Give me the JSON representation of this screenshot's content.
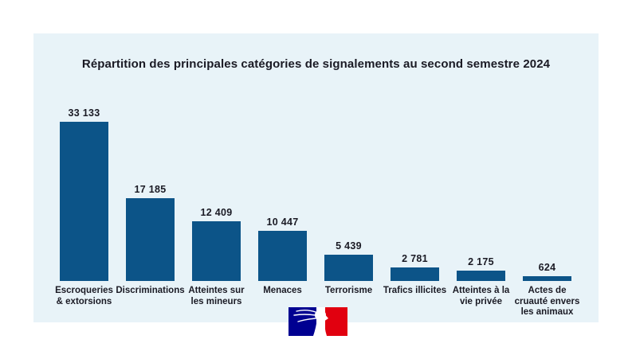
{
  "page": {
    "background_color": "#ffffff",
    "panel_color": "#e8f3f8"
  },
  "chart_data": {
    "type": "bar",
    "title": "Répartition des principales catégories de signalements au second semestre 2024",
    "categories": [
      "Escroqueries & extorsions",
      "Discriminations",
      "Atteintes sur les mineurs",
      "Menaces",
      "Terrorisme",
      "Trafics illicites",
      "Atteintes à la vie privée",
      "Actes de cruauté envers les animaux"
    ],
    "category_lines": [
      [
        "Escroqueries",
        "& extorsions"
      ],
      [
        "Discriminations"
      ],
      [
        "Atteintes sur",
        "les mineurs"
      ],
      [
        "Menaces"
      ],
      [
        "Terrorisme"
      ],
      [
        "Trafics illicites"
      ],
      [
        "Atteintes à la",
        "vie privée"
      ],
      [
        "Actes de",
        "cruauté envers",
        "les animaux"
      ]
    ],
    "values": [
      33133,
      17185,
      12409,
      10447,
      5439,
      2781,
      2175,
      624
    ],
    "value_labels": [
      "33 133",
      "17 185",
      "12 409",
      "10 447",
      "5 439",
      "2 781",
      "2 175",
      "624"
    ],
    "bar_color": "#0c5488",
    "label_color": "#1a1a24",
    "ylim": [
      0,
      33133
    ],
    "grid": false,
    "legend_position": "none",
    "xlabel": "",
    "ylabel": ""
  },
  "footer": {
    "logo": {
      "name": "République Française (Marianne) government logo",
      "colors": {
        "blue": "#000091",
        "white": "#ffffff",
        "red": "#e1000f"
      }
    }
  }
}
